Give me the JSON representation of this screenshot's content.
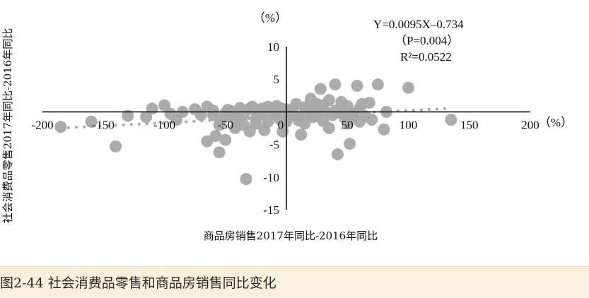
{
  "chart_data": {
    "type": "scatter",
    "title": "",
    "xlabel": "商品房销售2017年同比-2016年同比",
    "ylabel": "社会消费品零售2017年同比-2016年同比",
    "x_unit": "（%）",
    "y_unit": "（%）",
    "xlim": [
      -200,
      200
    ],
    "ylim": [
      -15,
      10
    ],
    "x_ticks": [
      -200,
      -150,
      -100,
      -50,
      0,
      50,
      100,
      150,
      200
    ],
    "y_ticks": [
      10,
      5,
      0,
      -5,
      -10,
      -15
    ],
    "grid": false,
    "legend": "none",
    "point_color": "#a8a8a8",
    "trend_color": "#a8a8a8",
    "trendline": {
      "slope": 0.0095,
      "intercept": -0.734,
      "x_range": [
        -185,
        135
      ]
    },
    "annotations": [
      "Y=0.0095X–0.734",
      "（P=0.004）",
      "R²=0.0522"
    ],
    "x": [
      -185,
      -160,
      -140,
      -130,
      -115,
      -110,
      -100,
      -95,
      -90,
      -85,
      -75,
      -70,
      -65,
      -60,
      -58,
      -55,
      -52,
      -50,
      -48,
      -45,
      -42,
      -40,
      -38,
      -35,
      -33,
      -30,
      -28,
      -25,
      -22,
      -20,
      -18,
      -15,
      -12,
      -10,
      -8,
      -5,
      -3,
      0,
      3,
      5,
      8,
      10,
      12,
      15,
      18,
      20,
      22,
      25,
      28,
      30,
      32,
      35,
      38,
      40,
      42,
      45,
      48,
      50,
      52,
      55,
      58,
      60,
      62,
      65,
      68,
      70,
      75,
      80,
      82,
      100,
      135,
      30,
      25,
      40,
      50,
      20,
      10,
      -10,
      -20,
      -30,
      -40,
      -55,
      -60,
      -65,
      -35,
      5,
      15,
      45,
      55,
      -25,
      -45,
      -15,
      0,
      35,
      60,
      -50,
      -5,
      25,
      10,
      20
    ],
    "y": [
      -2.3,
      -1.5,
      -5.3,
      -0.6,
      -0.8,
      0.5,
      1.0,
      -0.3,
      -1.2,
      0.0,
      0.4,
      -0.5,
      -4.5,
      0.2,
      -3.7,
      -6.2,
      -1.0,
      -4.3,
      0.3,
      -0.8,
      -2.5,
      -1.5,
      0.6,
      -0.4,
      -10.3,
      -3.0,
      0.8,
      -1.0,
      -0.2,
      0.5,
      -2.8,
      -1.5,
      0.2,
      -0.5,
      0.9,
      -1.2,
      -3.0,
      0.4,
      -0.6,
      0.1,
      1.2,
      -1.3,
      -3.5,
      0.7,
      -0.2,
      2.0,
      -0.8,
      0.4,
      3.5,
      -1.4,
      0.0,
      1.8,
      -0.5,
      4.2,
      -6.5,
      -0.2,
      -1.0,
      0.9,
      -4.9,
      -0.3,
      4.0,
      -1.5,
      1.2,
      -0.7,
      1.4,
      -1.2,
      4.2,
      -2.7,
      0.0,
      3.7,
      -1.2,
      1.0,
      -0.5,
      0.2,
      -1.8,
      0.6,
      -0.8,
      0.3,
      -0.3,
      0.5,
      -1.0,
      -2.0,
      -0.5,
      0.8,
      -2.0,
      0.2,
      -1.8,
      1.5,
      -0.7,
      -1.8,
      0.1,
      0.8,
      -1.5,
      -2.5,
      0.5,
      -0.2,
      0.6,
      1.2,
      -0.9,
      0.4
    ]
  },
  "caption": "图2-44 社会消费品零售和商品房销售同比变化"
}
